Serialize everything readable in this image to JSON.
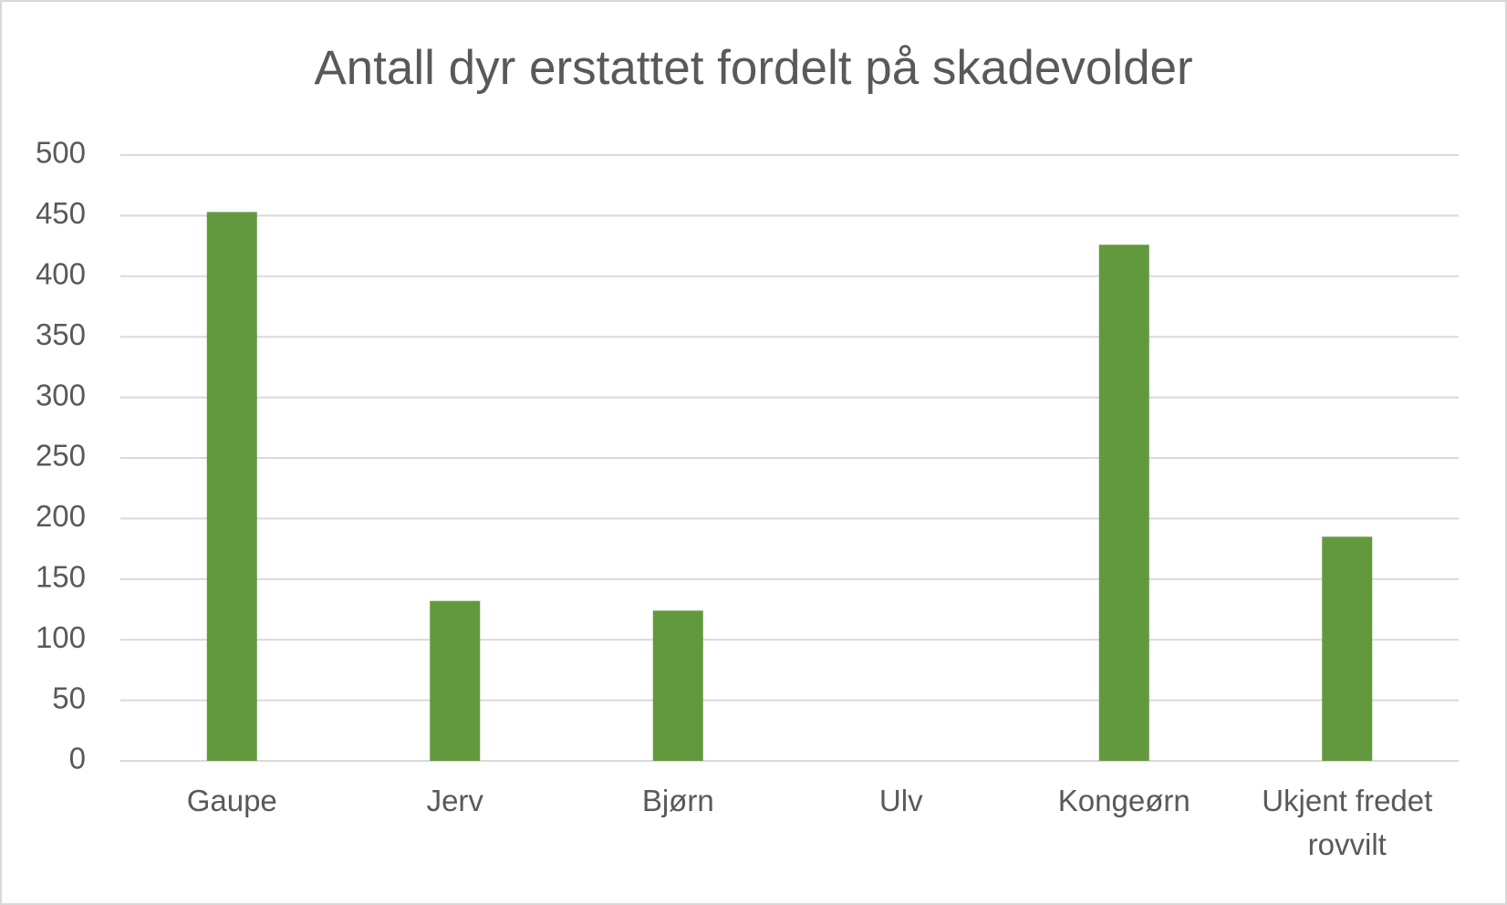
{
  "chart_data": {
    "type": "bar",
    "title": "Antall dyr erstattet fordelt på skadevolder",
    "categories": [
      "Gaupe",
      "Jerv",
      "Bjørn",
      "Ulv",
      "Kongeørn",
      "Ukjent fredet rovvilt"
    ],
    "values": [
      453,
      132,
      124,
      0,
      426,
      185
    ],
    "color": "#62993e",
    "ylim": [
      0,
      500
    ],
    "yticks": [
      0,
      50,
      100,
      150,
      200,
      250,
      300,
      350,
      400,
      450,
      500
    ],
    "grid": true
  }
}
